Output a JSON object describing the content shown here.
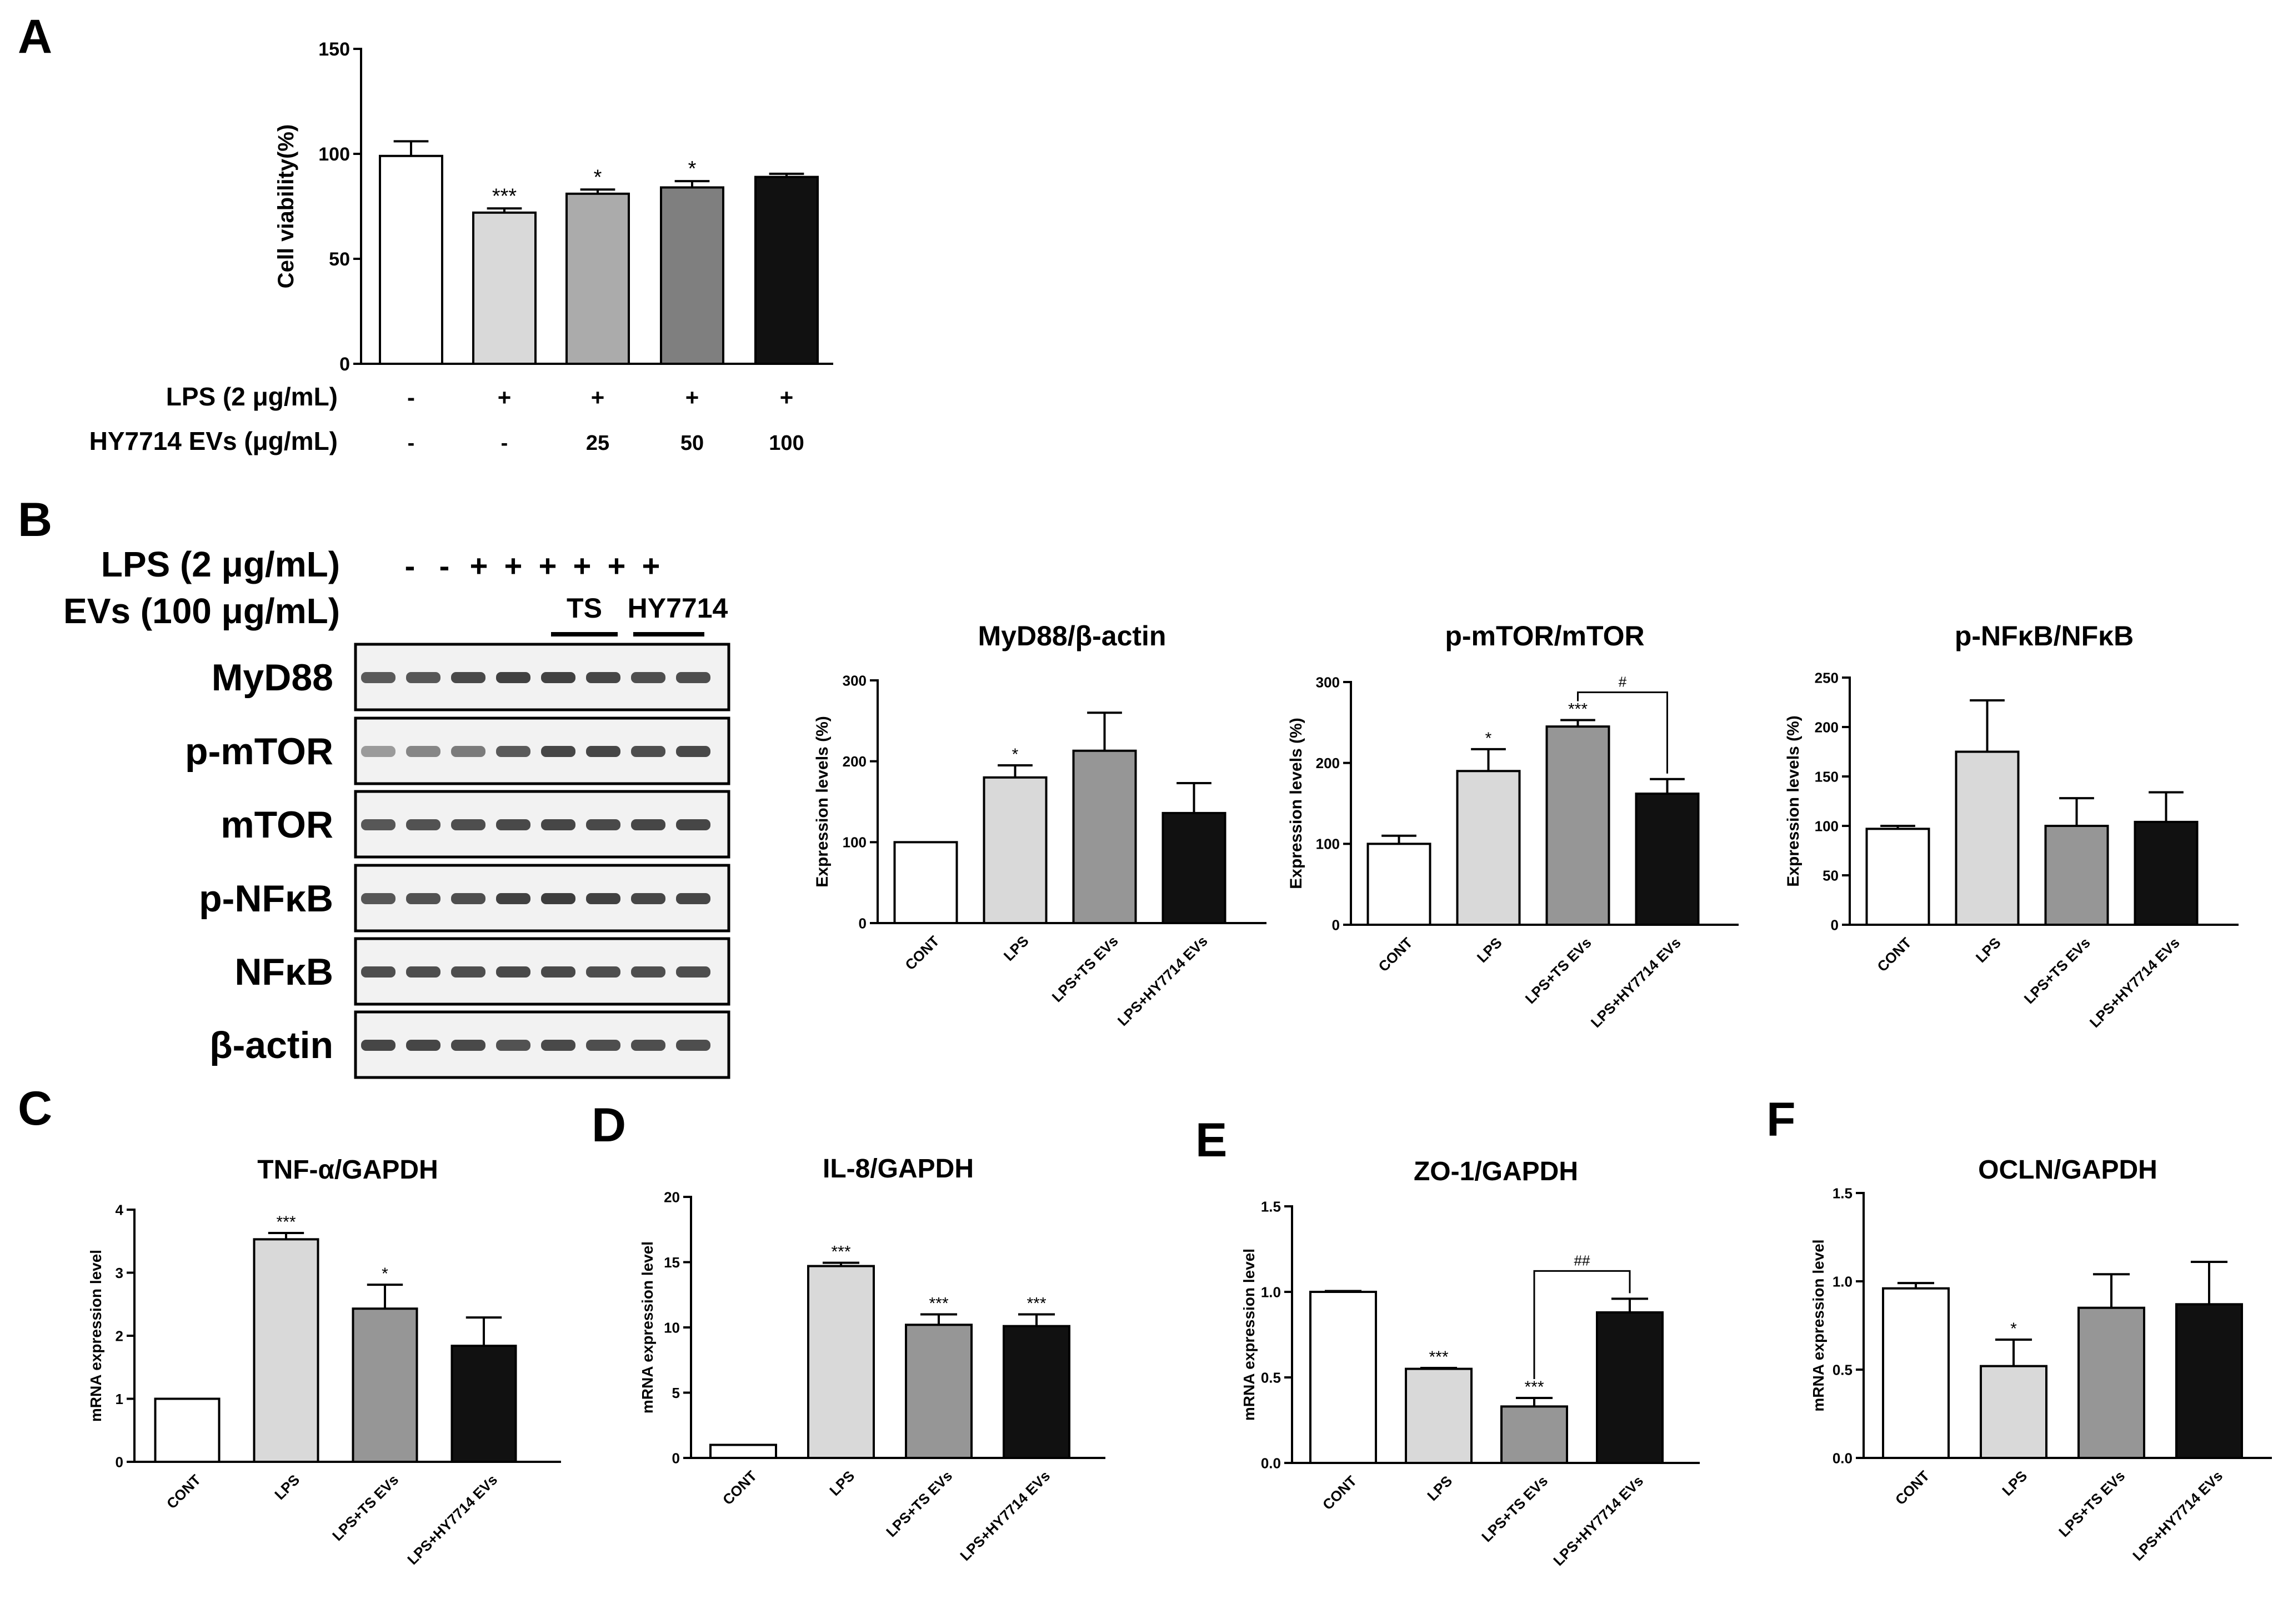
{
  "panels": {
    "A": {
      "letter": "A"
    },
    "B": {
      "letter": "B"
    },
    "C": {
      "letter": "C"
    },
    "D": {
      "letter": "D"
    },
    "E": {
      "letter": "E"
    },
    "F": {
      "letter": "F"
    }
  },
  "panel_A": {
    "row_labels": [
      "LPS (2 μg/mL)",
      "HY7714 EVs (μg/mL)"
    ],
    "lps_marks": [
      "-",
      "+",
      "+",
      "+",
      "+"
    ],
    "ev_marks": [
      "-",
      "-",
      "25",
      "50",
      "100"
    ]
  },
  "blot": {
    "header_lps": "LPS (2 μg/mL)",
    "header_evs": "EVs (100 μg/mL)",
    "lps_marks": [
      "-",
      "-",
      "+",
      "+",
      "+",
      "+",
      "+",
      "+"
    ],
    "group_labels": [
      "TS",
      "HY7714"
    ],
    "rows": [
      "MyD88",
      "p-mTOR",
      "mTOR",
      "p-NFκB",
      "NFκB",
      "β-actin"
    ]
  },
  "colors": {
    "white": "#ffffff",
    "light_gray": "#d9d9d9",
    "mid_gray": "#ababab",
    "dark_gray": "#7f7f7f",
    "gray": "#969696",
    "black": "#111111"
  },
  "chart_data": [
    {
      "id": "A",
      "type": "bar",
      "title": "",
      "ylabel": "Cell viability(%)",
      "ylim": [
        0,
        150
      ],
      "yticks": [
        0,
        50,
        100,
        150
      ],
      "categories": [
        "",
        "",
        "",
        "",
        ""
      ],
      "values": [
        99,
        72,
        81,
        84,
        89
      ],
      "errors": [
        7,
        2,
        2,
        3,
        1.5
      ],
      "colors": [
        "#ffffff",
        "#d9d9d9",
        "#ababab",
        "#7f7f7f",
        "#111111"
      ],
      "significance": [
        "",
        "***",
        "*",
        "*",
        ""
      ]
    },
    {
      "id": "B1",
      "type": "bar",
      "title": "MyD88/β-actin",
      "ylabel": "Expression levels  (%)",
      "ylim": [
        0,
        300
      ],
      "yticks": [
        0,
        100,
        200,
        300
      ],
      "categories": [
        "CONT",
        "LPS",
        "LPS+TS EVs",
        "LPS+HY7714 EVs"
      ],
      "values": [
        100,
        180,
        213,
        136
      ],
      "errors": [
        0,
        15,
        47,
        37
      ],
      "colors": [
        "#ffffff",
        "#d9d9d9",
        "#969696",
        "#111111"
      ],
      "significance": [
        "",
        "*",
        "",
        ""
      ]
    },
    {
      "id": "B2",
      "type": "bar",
      "title": "p-mTOR/mTOR",
      "ylabel": "Expression levels  (%)",
      "ylim": [
        0,
        300
      ],
      "yticks": [
        0,
        100,
        200,
        300
      ],
      "categories": [
        "CONT",
        "LPS",
        "LPS+TS EVs",
        "LPS+HY7714 EVs"
      ],
      "values": [
        100,
        190,
        245,
        162
      ],
      "errors": [
        10,
        27,
        8,
        18
      ],
      "colors": [
        "#ffffff",
        "#d9d9d9",
        "#969696",
        "#111111"
      ],
      "significance": [
        "",
        "*",
        "***",
        ""
      ],
      "bracket": {
        "from": 2,
        "to": 3,
        "label": "#"
      }
    },
    {
      "id": "B3",
      "type": "bar",
      "title": "p-NFκB/NFκB",
      "ylabel": "Expression levels  (%)",
      "ylim": [
        0,
        250
      ],
      "yticks": [
        0,
        50,
        100,
        150,
        200,
        250
      ],
      "categories": [
        "CONT",
        "LPS",
        "LPS+TS EVs",
        "LPS+HY7714 EVs"
      ],
      "values": [
        97,
        175,
        100,
        104
      ],
      "errors": [
        3,
        52,
        28,
        30
      ],
      "colors": [
        "#ffffff",
        "#d9d9d9",
        "#969696",
        "#111111"
      ],
      "significance": [
        "",
        "",
        "",
        ""
      ]
    },
    {
      "id": "C",
      "type": "bar",
      "title": "TNF-α/GAPDH",
      "ylabel": "mRNA expression level",
      "ylim": [
        0,
        4
      ],
      "yticks": [
        0,
        1,
        2,
        3,
        4
      ],
      "categories": [
        "CONT",
        "LPS",
        "LPS+TS EVs",
        "LPS+HY7714 EVs"
      ],
      "values": [
        1,
        3.53,
        2.43,
        1.84
      ],
      "errors": [
        0,
        0.1,
        0.38,
        0.45
      ],
      "colors": [
        "#ffffff",
        "#d9d9d9",
        "#969696",
        "#111111"
      ],
      "significance": [
        "",
        "***",
        "*",
        ""
      ]
    },
    {
      "id": "D",
      "type": "bar",
      "title": "IL-8/GAPDH",
      "ylabel": "mRNA expression level",
      "ylim": [
        0,
        20
      ],
      "yticks": [
        0,
        5,
        10,
        15,
        20
      ],
      "categories": [
        "CONT",
        "LPS",
        "LPS+TS EVs",
        "LPS+HY7714 EVs"
      ],
      "values": [
        1,
        14.7,
        10.2,
        10.1
      ],
      "errors": [
        0,
        0.25,
        0.8,
        0.9
      ],
      "colors": [
        "#ffffff",
        "#d9d9d9",
        "#969696",
        "#111111"
      ],
      "significance": [
        "",
        "***",
        "***",
        "***"
      ]
    },
    {
      "id": "E",
      "type": "bar",
      "title": "ZO-1/GAPDH",
      "ylabel": "mRNA expression level",
      "ylim": [
        0,
        1.5
      ],
      "yticks": [
        0.0,
        0.5,
        1.0,
        1.5
      ],
      "categories": [
        "CONT",
        "LPS",
        "LPS+TS EVs",
        "LPS+HY7714 EVs"
      ],
      "values": [
        1.0,
        0.55,
        0.33,
        0.88
      ],
      "errors": [
        0.005,
        0.005,
        0.05,
        0.08
      ],
      "colors": [
        "#ffffff",
        "#d9d9d9",
        "#969696",
        "#111111"
      ],
      "significance": [
        "",
        "***",
        "***",
        ""
      ],
      "bracket": {
        "from": 2,
        "to": 3,
        "label": "##"
      }
    },
    {
      "id": "F",
      "type": "bar",
      "title": "OCLN/GAPDH",
      "ylabel": "mRNA expression level",
      "ylim": [
        0,
        1.5
      ],
      "yticks": [
        0.0,
        0.5,
        1.0,
        1.5
      ],
      "categories": [
        "CONT",
        "LPS",
        "LPS+TS EVs",
        "LPS+HY7714 EVs"
      ],
      "values": [
        0.96,
        0.52,
        0.85,
        0.87
      ],
      "errors": [
        0.03,
        0.15,
        0.19,
        0.24
      ],
      "colors": [
        "#ffffff",
        "#d9d9d9",
        "#969696",
        "#111111"
      ],
      "significance": [
        "",
        "*",
        "",
        ""
      ]
    }
  ]
}
